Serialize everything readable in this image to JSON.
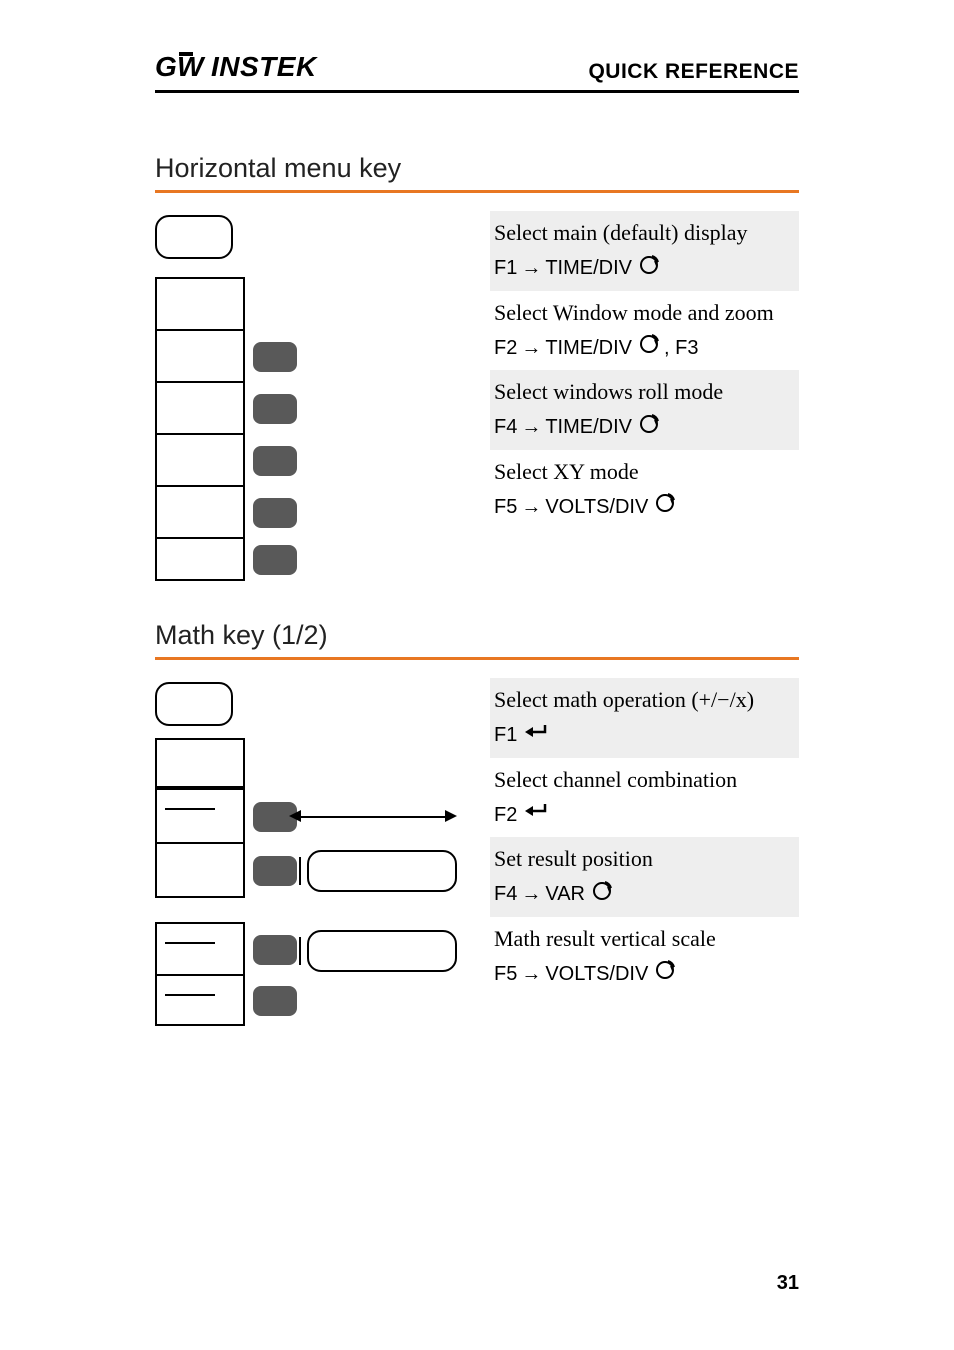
{
  "header": {
    "logo_text": "GW INSTEK",
    "right_text": "QUICK REFERENCE"
  },
  "colors": {
    "accent": "#e87722",
    "shade": "#eeeeee",
    "btn": "#595959"
  },
  "section1": {
    "title": "Horizontal menu key",
    "rows": [
      {
        "desc": "Select main (default) display",
        "ref_prefix": "F1",
        "ref_mid": "TIME/DIV",
        "icon": "knob",
        "suffix": "",
        "shaded": true
      },
      {
        "desc": "Select Window mode and zoom",
        "ref_prefix": "F2",
        "ref_mid": "TIME/DIV",
        "icon": "knob",
        "suffix": ", F3",
        "shaded": false
      },
      {
        "desc": "Select windows roll mode",
        "ref_prefix": "F4",
        "ref_mid": "TIME/DIV",
        "icon": "knob",
        "suffix": "",
        "shaded": true
      },
      {
        "desc": "Select XY mode",
        "ref_prefix": "F5",
        "ref_mid": "VOLTS/DIV",
        "icon": "knob",
        "suffix": "",
        "shaded": false
      }
    ]
  },
  "section2": {
    "title": "Math key (1/2)",
    "rows": [
      {
        "desc": "Select math operation (+/−/x)",
        "ref_prefix": "F1",
        "ref_mid": "",
        "icon": "enter",
        "suffix": "",
        "shaded": true
      },
      {
        "desc": "Select channel combination",
        "ref_prefix": "F2",
        "ref_mid": "",
        "icon": "enter",
        "suffix": "",
        "shaded": false
      },
      {
        "desc": "Set result position",
        "ref_prefix": "F4",
        "ref_mid": "VAR",
        "icon": "knob",
        "suffix": "",
        "shaded": true
      },
      {
        "desc": "Math result vertical scale",
        "ref_prefix": "F5",
        "ref_mid": "VOLTS/DIV",
        "icon": "knob",
        "suffix": "",
        "shaded": false
      }
    ]
  },
  "page_number": "31"
}
